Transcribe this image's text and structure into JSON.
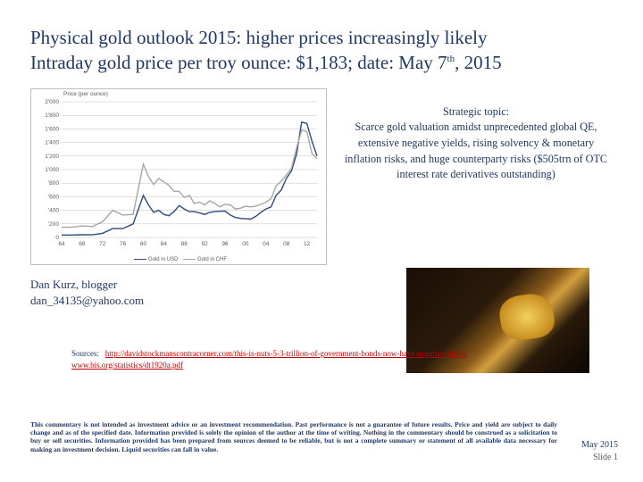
{
  "title": {
    "line1": "Physical gold outlook 2015: higher prices increasingly likely",
    "line2": "Intraday gold price per troy ounce: $1,183; date: May 7",
    "line2_sup": "th",
    "line2_tail": ", 2015"
  },
  "chart": {
    "axis_title": "Price (per ounce)",
    "ylim": [
      0,
      2000
    ],
    "yticks": [
      0,
      200,
      400,
      600,
      800,
      1000,
      1200,
      1400,
      1600,
      1800,
      2000
    ],
    "ytick_labels": [
      "0",
      "'200",
      "'400",
      "'600",
      "'800",
      "1'000",
      "1'200",
      "1'400",
      "1'600",
      "1'800",
      "2'000"
    ],
    "xlim": [
      64,
      14
    ],
    "xticks": [
      64,
      68,
      72,
      76,
      80,
      84,
      88,
      92,
      96,
      0,
      4,
      8,
      12
    ],
    "xtick_labels": [
      "64",
      "68",
      "72",
      "76",
      "80",
      "84",
      "88",
      "92",
      "96",
      "00",
      "04",
      "08",
      "12"
    ],
    "grid_color": "#bfbfbf",
    "plot_bg": "#ffffff",
    "series": [
      {
        "name": "Gold in USD",
        "color": "#2f4b7c",
        "width": 1.4,
        "points": [
          [
            64,
            35
          ],
          [
            66,
            35
          ],
          [
            68,
            40
          ],
          [
            70,
            38
          ],
          [
            72,
            60
          ],
          [
            74,
            130
          ],
          [
            76,
            130
          ],
          [
            78,
            200
          ],
          [
            80,
            620
          ],
          [
            81,
            480
          ],
          [
            82,
            370
          ],
          [
            83,
            400
          ],
          [
            84,
            340
          ],
          [
            85,
            320
          ],
          [
            86,
            380
          ],
          [
            87,
            470
          ],
          [
            88,
            420
          ],
          [
            89,
            380
          ],
          [
            90,
            380
          ],
          [
            91,
            360
          ],
          [
            92,
            340
          ],
          [
            93,
            370
          ],
          [
            94,
            380
          ],
          [
            95,
            385
          ],
          [
            96,
            390
          ],
          [
            97,
            330
          ],
          [
            98,
            295
          ],
          [
            99,
            280
          ],
          [
            0,
            275
          ],
          [
            1,
            270
          ],
          [
            2,
            310
          ],
          [
            3,
            370
          ],
          [
            4,
            420
          ],
          [
            5,
            450
          ],
          [
            6,
            620
          ],
          [
            7,
            700
          ],
          [
            8,
            870
          ],
          [
            9,
            980
          ],
          [
            10,
            1230
          ],
          [
            11,
            1700
          ],
          [
            12,
            1680
          ],
          [
            13,
            1420
          ],
          [
            14,
            1200
          ]
        ]
      },
      {
        "name": "Gold in CHF",
        "color": "#a6a6a6",
        "width": 1.4,
        "points": [
          [
            64,
            150
          ],
          [
            66,
            150
          ],
          [
            68,
            170
          ],
          [
            70,
            160
          ],
          [
            72,
            230
          ],
          [
            74,
            400
          ],
          [
            76,
            330
          ],
          [
            78,
            340
          ],
          [
            80,
            1080
          ],
          [
            81,
            900
          ],
          [
            82,
            780
          ],
          [
            83,
            870
          ],
          [
            84,
            820
          ],
          [
            85,
            770
          ],
          [
            86,
            680
          ],
          [
            87,
            680
          ],
          [
            88,
            590
          ],
          [
            89,
            620
          ],
          [
            90,
            500
          ],
          [
            91,
            520
          ],
          [
            92,
            480
          ],
          [
            93,
            540
          ],
          [
            94,
            500
          ],
          [
            95,
            450
          ],
          [
            96,
            490
          ],
          [
            97,
            480
          ],
          [
            98,
            420
          ],
          [
            99,
            430
          ],
          [
            0,
            460
          ],
          [
            1,
            450
          ],
          [
            2,
            460
          ],
          [
            3,
            490
          ],
          [
            4,
            520
          ],
          [
            5,
            570
          ],
          [
            6,
            760
          ],
          [
            7,
            830
          ],
          [
            8,
            920
          ],
          [
            9,
            1020
          ],
          [
            10,
            1320
          ],
          [
            11,
            1580
          ],
          [
            12,
            1560
          ],
          [
            13,
            1240
          ],
          [
            14,
            1160
          ]
        ]
      }
    ],
    "legend": [
      {
        "label": "Gold in USD",
        "color": "#2f4b7c"
      },
      {
        "label": "Gold in CHF",
        "color": "#a6a6a6"
      }
    ]
  },
  "strategic": {
    "heading": "Strategic topic:",
    "body": "Scarce gold valuation amidst unprecedented global QE, extensive negative yields, rising solvency & monetary inflation risks, and huge counterparty risks ($505trn of OTC interest rate derivatives outstanding)"
  },
  "author": {
    "name": "Dan Kurz, blogger",
    "email": "dan_34135@yahoo.com"
  },
  "sources": {
    "label": "Sources:",
    "link1": "http://davidstockmanscontracorner.com/this-is-nuts-5-3-trillion-of-government-bonds-now-have-negative-yields",
    "sep": ", ",
    "link2": "www.bis.org/statistics/dt1920a.pdf"
  },
  "disclaimer": "This commentary is not intended as investment advice or an investment recommendation. Past performance is not a guarantee of future results. Price and yield are subject to daily change and as of the specified date. Information provided is solely the opinion of the author at the time of writing.  Nothing in the commentary should be construed as a solicitation to buy or sell securities. Information provided has been prepared from sources deemed to be reliable, but is not a complete summary or statement of all available data necessary for making an investment decision.  Liquid securities can fall in value.",
  "footer": {
    "date": "May 2015",
    "slide": "Slide 1"
  }
}
